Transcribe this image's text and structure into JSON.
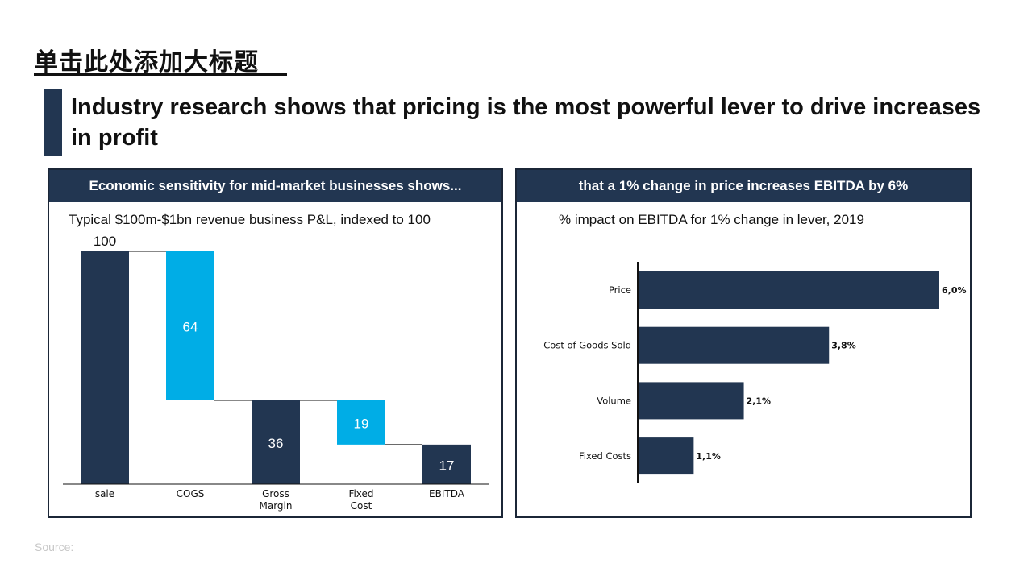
{
  "title_cn": "单击此处添加大标题",
  "headline": "Industry research shows that pricing is the most powerful lever to drive increases in profit",
  "source": "Source:",
  "colors": {
    "navy": "#223651",
    "cyan": "#00ADE6"
  },
  "chart_data": [
    {
      "type": "bar",
      "subtype": "waterfall",
      "header": "Economic sensitivity for mid-market businesses shows...",
      "title": "Typical $100m-$1bn revenue business P&L, indexed to 100",
      "categories": [
        "sale",
        "COGS",
        "Gross Margin",
        "Fixed Cost",
        "EBITDA"
      ],
      "values": [
        100,
        64,
        36,
        19,
        17
      ],
      "labels": [
        "100",
        "64",
        "36",
        "19",
        "17"
      ],
      "kinds": [
        "total",
        "decrease",
        "total",
        "decrease",
        "total"
      ],
      "ylim": [
        0,
        100
      ]
    },
    {
      "type": "bar",
      "orientation": "horizontal",
      "header": "that a 1% change in price increases EBITDA by 6%",
      "title": "% impact on EBITDA for 1% change in lever, 2019",
      "categories": [
        "Price",
        "Cost of Goods Sold",
        "Volume",
        "Fixed Costs"
      ],
      "values": [
        6.0,
        3.8,
        2.1,
        1.1
      ],
      "labels": [
        "6,0%",
        "3,8%",
        "2,1%",
        "1,1%"
      ],
      "xlim": [
        0,
        6.0
      ]
    }
  ]
}
